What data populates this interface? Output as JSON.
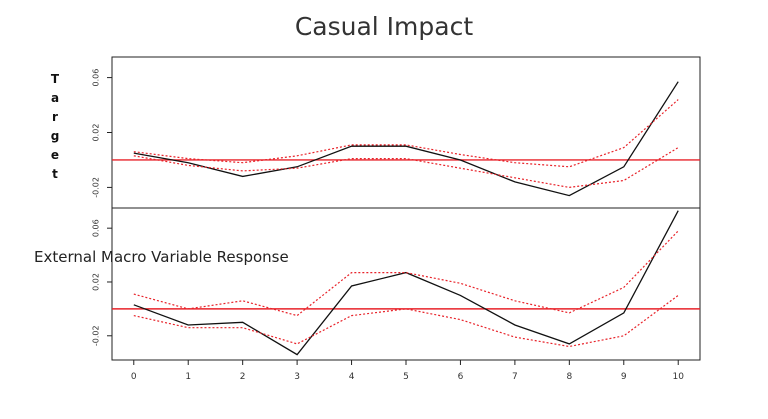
{
  "chart_data": {
    "title": "Casual Impact",
    "x_ticks": [
      0,
      1,
      2,
      3,
      4,
      5,
      6,
      7,
      8,
      9,
      10
    ],
    "panels": [
      {
        "ylabel": "Target",
        "ylim": [
          -0.035,
          0.075
        ],
        "y_ticks": [
          {
            "v": 0.06,
            "label": "0.06"
          },
          {
            "v": 0.02,
            "label": "0.02"
          },
          {
            "v": -0.02,
            "label": "-0.02"
          }
        ],
        "zero_line": 0,
        "series": [
          {
            "role": "response",
            "color": "#111111",
            "style": "solid",
            "x": [
              0,
              1,
              2,
              3,
              4,
              5,
              6,
              7,
              8,
              9,
              10
            ],
            "y": [
              0.005,
              -0.002,
              -0.012,
              -0.005,
              0.01,
              0.01,
              0.0,
              -0.016,
              -0.026,
              -0.005,
              0.057
            ]
          },
          {
            "role": "upper",
            "color": "#e8232a",
            "style": "dotted",
            "x": [
              0,
              1,
              2,
              3,
              4,
              5,
              6,
              7,
              8,
              9,
              10
            ],
            "y": [
              0.006,
              0.001,
              -0.002,
              0.003,
              0.011,
              0.011,
              0.004,
              -0.002,
              -0.005,
              0.009,
              0.044
            ]
          },
          {
            "role": "lower",
            "color": "#e8232a",
            "style": "dotted",
            "x": [
              0,
              1,
              2,
              3,
              4,
              5,
              6,
              7,
              8,
              9,
              10
            ],
            "y": [
              0.003,
              -0.004,
              -0.008,
              -0.006,
              0.001,
              0.001,
              -0.006,
              -0.013,
              -0.02,
              -0.015,
              0.009
            ]
          }
        ]
      },
      {
        "ylabel": "External Macro Variable Response",
        "ylim": [
          -0.038,
          0.075
        ],
        "y_ticks": [
          {
            "v": 0.06,
            "label": "0.06"
          },
          {
            "v": 0.02,
            "label": "0.02"
          },
          {
            "v": -0.02,
            "label": "-0.02"
          }
        ],
        "zero_line": 0,
        "series": [
          {
            "role": "response",
            "color": "#111111",
            "style": "solid",
            "x": [
              0,
              1,
              2,
              3,
              4,
              5,
              6,
              7,
              8,
              9,
              10
            ],
            "y": [
              0.003,
              -0.012,
              -0.01,
              -0.034,
              0.017,
              0.027,
              0.01,
              -0.012,
              -0.026,
              -0.003,
              0.073
            ]
          },
          {
            "role": "upper",
            "color": "#e8232a",
            "style": "dotted",
            "x": [
              0,
              1,
              2,
              3,
              4,
              5,
              6,
              7,
              8,
              9,
              10
            ],
            "y": [
              0.011,
              0.0,
              0.006,
              -0.005,
              0.027,
              0.027,
              0.019,
              0.006,
              -0.003,
              0.016,
              0.058
            ]
          },
          {
            "role": "lower",
            "color": "#e8232a",
            "style": "dotted",
            "x": [
              0,
              1,
              2,
              3,
              4,
              5,
              6,
              7,
              8,
              9,
              10
            ],
            "y": [
              -0.005,
              -0.014,
              -0.014,
              -0.026,
              -0.005,
              0.0,
              -0.008,
              -0.021,
              -0.028,
              -0.02,
              0.01
            ]
          }
        ]
      }
    ]
  },
  "colors": {
    "zero_line": "#e8232a",
    "response": "#111111",
    "band": "#e8232a"
  }
}
